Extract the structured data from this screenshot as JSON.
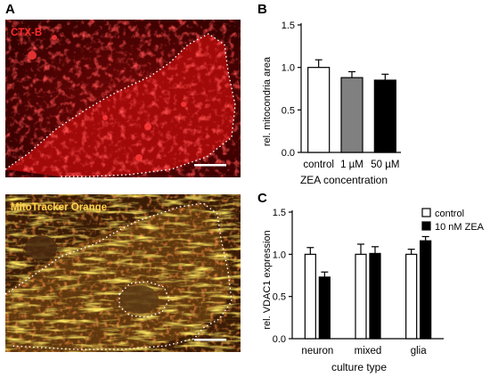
{
  "panels": {
    "a": {
      "letter": "A",
      "images": [
        {
          "label": "CTX-B",
          "label_color": "#ff2b2b"
        },
        {
          "label": "MitoTracker Orange",
          "label_color": "#ffd24a"
        }
      ]
    },
    "b": {
      "letter": "B"
    },
    "c": {
      "letter": "C"
    }
  },
  "chart_data": [
    {
      "type": "bar",
      "panel": "B",
      "categories": [
        "control",
        "1 µM",
        "50 µM"
      ],
      "values": [
        1.0,
        0.88,
        0.85
      ],
      "errors": [
        0.09,
        0.07,
        0.07
      ],
      "bar_fills": [
        "#ffffff",
        "#808080",
        "#000000"
      ],
      "ylabel": "rel. mitocondria area",
      "xlabel": "ZEA concentration",
      "ylim": [
        0,
        1.5
      ],
      "yticks": [
        "0.0",
        "0.5",
        "1.0",
        "1.5"
      ],
      "grid": false
    },
    {
      "type": "bar",
      "panel": "C",
      "categories": [
        "neuron",
        "mixed",
        "glia"
      ],
      "series": [
        {
          "name": "control",
          "fill": "#ffffff",
          "values": [
            1.0,
            1.0,
            1.0
          ],
          "errors": [
            0.08,
            0.12,
            0.06
          ]
        },
        {
          "name": "10 nM ZEA",
          "fill": "#000000",
          "values": [
            0.73,
            1.01,
            1.16
          ],
          "errors": [
            0.06,
            0.08,
            0.05
          ]
        }
      ],
      "ylabel": "rel. VDAC1 expression",
      "xlabel": "culture type",
      "ylim": [
        0,
        1.5
      ],
      "yticks": [
        "0.0",
        "0.5",
        "1.0",
        "1.5"
      ],
      "legend": "top-right",
      "grid": false
    }
  ]
}
